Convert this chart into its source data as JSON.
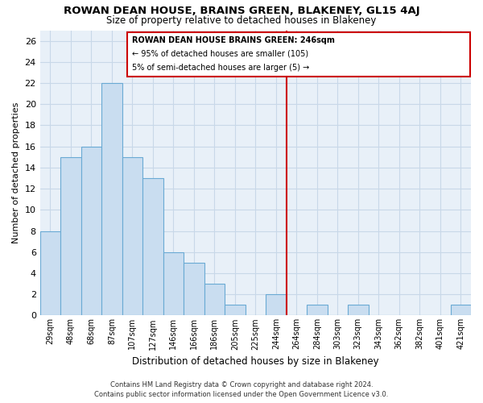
{
  "title": "ROWAN DEAN HOUSE, BRAINS GREEN, BLAKENEY, GL15 4AJ",
  "subtitle": "Size of property relative to detached houses in Blakeney",
  "xlabel": "Distribution of detached houses by size in Blakeney",
  "ylabel": "Number of detached properties",
  "bin_labels": [
    "29sqm",
    "48sqm",
    "68sqm",
    "87sqm",
    "107sqm",
    "127sqm",
    "146sqm",
    "166sqm",
    "186sqm",
    "205sqm",
    "225sqm",
    "244sqm",
    "264sqm",
    "284sqm",
    "303sqm",
    "323sqm",
    "343sqm",
    "362sqm",
    "382sqm",
    "401sqm",
    "421sqm"
  ],
  "bar_heights": [
    8,
    15,
    16,
    22,
    15,
    13,
    6,
    5,
    3,
    1,
    0,
    2,
    0,
    1,
    0,
    1,
    0,
    0,
    0,
    0,
    1
  ],
  "bar_color": "#c9ddf0",
  "bar_edge_color": "#6aaad4",
  "vline_color": "#cc0000",
  "vline_x_index": 11.5,
  "ylim": [
    0,
    27
  ],
  "yticks": [
    0,
    2,
    4,
    6,
    8,
    10,
    12,
    14,
    16,
    18,
    20,
    22,
    24,
    26
  ],
  "annotation_title": "ROWAN DEAN HOUSE BRAINS GREEN: 246sqm",
  "annotation_line1": "← 95% of detached houses are smaller (105)",
  "annotation_line2": "5% of semi-detached houses are larger (5) →",
  "footer1": "Contains HM Land Registry data © Crown copyright and database right 2024.",
  "footer2": "Contains public sector information licensed under the Open Government Licence v3.0.",
  "background_color": "#ffffff",
  "grid_color": "#c8d8e8"
}
